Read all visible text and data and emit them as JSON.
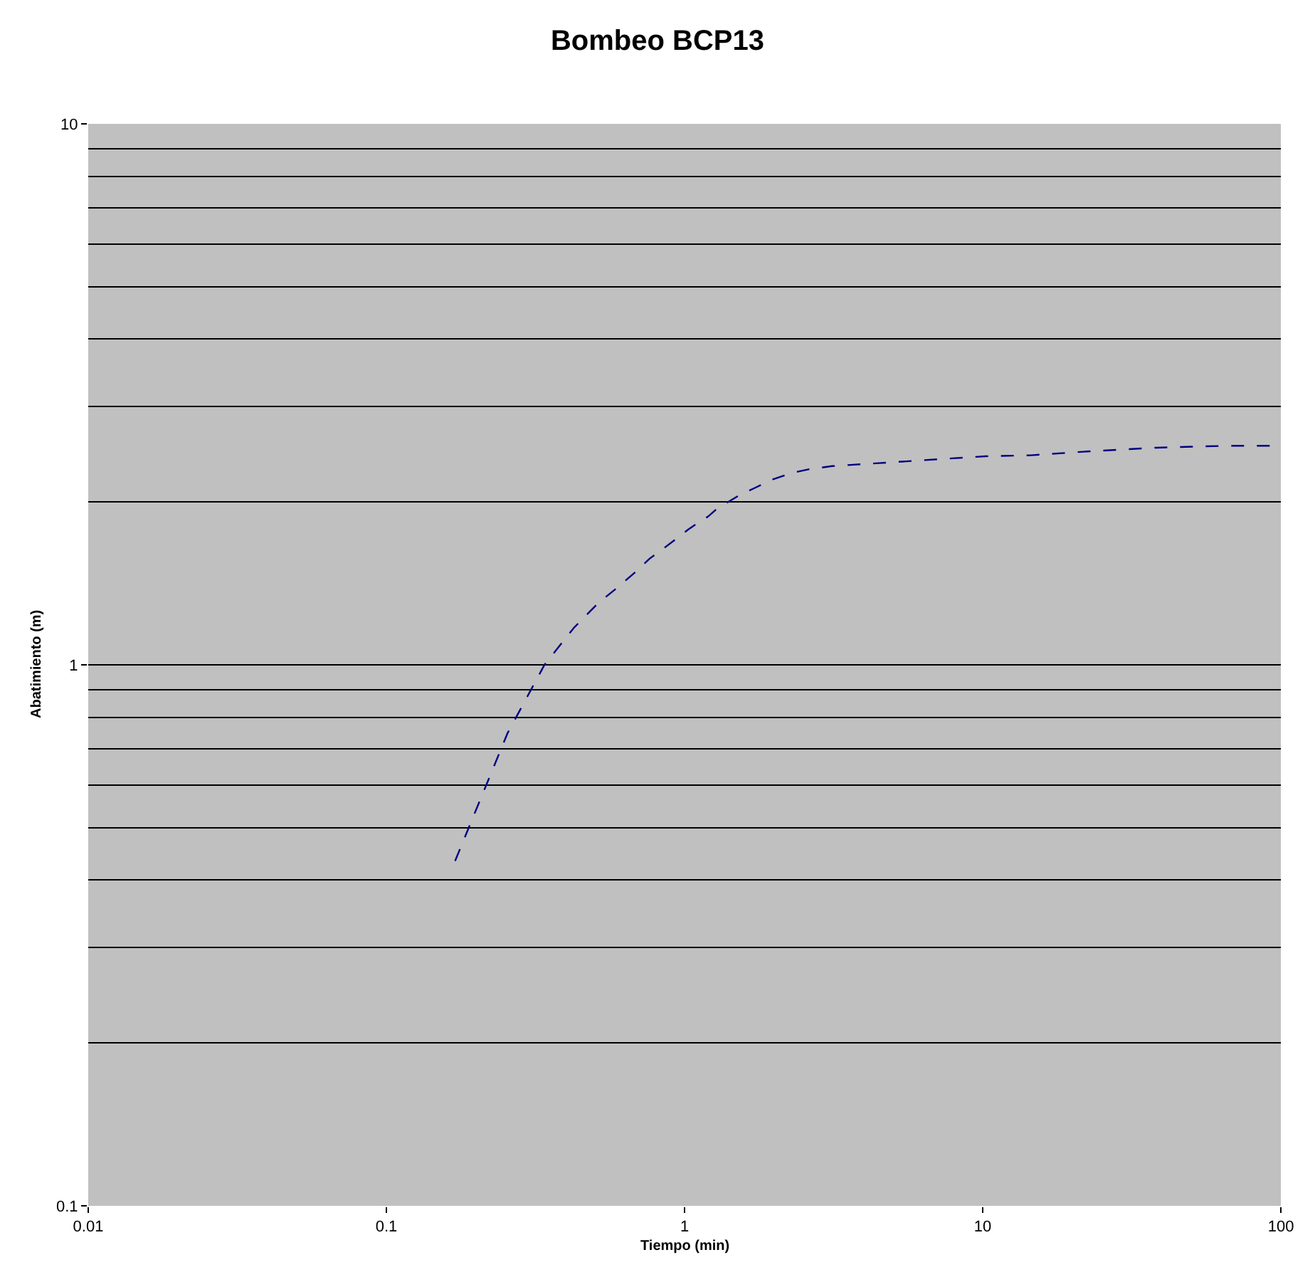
{
  "chart_data": {
    "type": "line",
    "title": "Bombeo BCP13",
    "xlabel": "Tiempo (min)",
    "ylabel": "Abatimiento (m)",
    "log": "xy",
    "xlim": [
      0.01,
      100
    ],
    "xticks": [
      0.01,
      0.1,
      1,
      10,
      100
    ],
    "ylim": [
      0.1,
      10
    ],
    "yticks": [
      0.1,
      1,
      10
    ],
    "grid": "y",
    "marker": "none",
    "line_style": "dashed",
    "series": [
      {
        "color": "#000080",
        "x": [
          0.17,
          0.255,
          0.339,
          0.425,
          0.513,
          0.596,
          0.68,
          0.762,
          0.849,
          0.938,
          1.03,
          1.11,
          1.2,
          1.28,
          1.4,
          1.53,
          1.71,
          1.97,
          2.27,
          2.62,
          3.13,
          4.48,
          6.4,
          10.2,
          14.5,
          22.4,
          38.1,
          65.2,
          100
        ],
        "values": [
          0.434,
          0.748,
          1.0,
          1.17,
          1.3,
          1.39,
          1.48,
          1.57,
          1.64,
          1.71,
          1.78,
          1.83,
          1.88,
          1.94,
          2.0,
          2.06,
          2.12,
          2.2,
          2.26,
          2.3,
          2.33,
          2.36,
          2.39,
          2.43,
          2.44,
          2.48,
          2.52,
          2.54,
          2.54
        ]
      }
    ]
  }
}
